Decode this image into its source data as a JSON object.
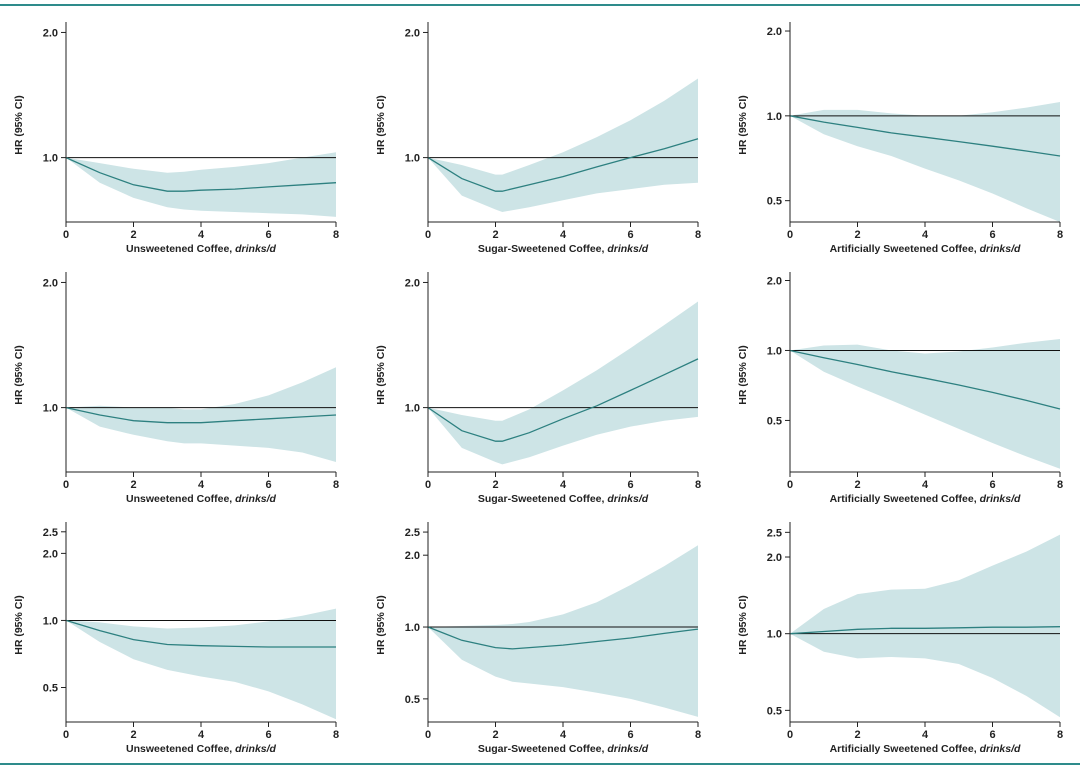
{
  "colors": {
    "band": "#cde4e6",
    "line": "#2d8080",
    "axis": "#222222",
    "ref": "#111111",
    "rule": "#2e8b8b"
  },
  "chart_data": [
    {
      "type": "line",
      "panel": "r1c1",
      "xlabel": "Unsweetened Coffee,",
      "xlabel_italic": "drinks/d",
      "ylabel": "HR (95% CI)",
      "x_ticks": [
        "0",
        "2",
        "4",
        "6",
        "8"
      ],
      "y_ticks": [
        "2.0",
        "1.0"
      ],
      "xlim": [
        0,
        8
      ],
      "ylim": [
        0.7,
        2.05
      ],
      "y_scale": "log",
      "ref_line": 1.0,
      "x": [
        0,
        1,
        2,
        3,
        3.5,
        4,
        5,
        6,
        7,
        8
      ],
      "hr": [
        1.0,
        0.92,
        0.86,
        0.83,
        0.83,
        0.835,
        0.84,
        0.85,
        0.86,
        0.87
      ],
      "lower": [
        1.0,
        0.87,
        0.8,
        0.76,
        0.75,
        0.745,
        0.74,
        0.735,
        0.73,
        0.72
      ],
      "upper": [
        1.0,
        0.97,
        0.94,
        0.92,
        0.925,
        0.935,
        0.95,
        0.97,
        1.0,
        1.03
      ]
    },
    {
      "type": "line",
      "panel": "r1c2",
      "xlabel": "Sugar-Sweetened Coffee,",
      "xlabel_italic": "drinks/d",
      "ylabel": "HR (95% CI)",
      "x_ticks": [
        "0",
        "2",
        "4",
        "6",
        "8"
      ],
      "y_ticks": [
        "2.0",
        "1.0"
      ],
      "xlim": [
        0,
        8
      ],
      "ylim": [
        0.7,
        2.05
      ],
      "y_scale": "log",
      "ref_line": 1.0,
      "x": [
        0,
        1,
        2,
        2.2,
        3,
        4,
        5,
        6,
        7,
        8
      ],
      "hr": [
        1.0,
        0.89,
        0.83,
        0.83,
        0.86,
        0.9,
        0.95,
        1.0,
        1.05,
        1.11
      ],
      "lower": [
        1.0,
        0.81,
        0.75,
        0.74,
        0.76,
        0.79,
        0.82,
        0.84,
        0.86,
        0.87
      ],
      "upper": [
        1.0,
        0.96,
        0.91,
        0.91,
        0.96,
        1.03,
        1.12,
        1.23,
        1.37,
        1.55
      ]
    },
    {
      "type": "line",
      "panel": "r1c3",
      "xlabel": "Artificially Sweetened Coffee,",
      "xlabel_italic": "drinks/d",
      "ylabel": "HR (95% CI)",
      "x_ticks": [
        "0",
        "2",
        "4",
        "6",
        "8"
      ],
      "y_ticks": [
        "2.0",
        "1.0",
        "0.5"
      ],
      "xlim": [
        0,
        8
      ],
      "ylim": [
        0.42,
        2.05
      ],
      "y_scale": "log",
      "ref_line": 1.0,
      "x": [
        0,
        1,
        2,
        3,
        4,
        5,
        6,
        7,
        8
      ],
      "hr": [
        1.0,
        0.95,
        0.91,
        0.87,
        0.84,
        0.81,
        0.78,
        0.75,
        0.72
      ],
      "lower": [
        1.0,
        0.86,
        0.78,
        0.72,
        0.65,
        0.59,
        0.53,
        0.47,
        0.42
      ],
      "upper": [
        1.0,
        1.05,
        1.05,
        1.02,
        1.0,
        1.0,
        1.03,
        1.07,
        1.12
      ]
    },
    {
      "type": "line",
      "panel": "r2c1",
      "xlabel": "Unsweetened Coffee,",
      "xlabel_italic": "drinks/d",
      "ylabel": "HR (95% CI)",
      "x_ticks": [
        "0",
        "2",
        "4",
        "6",
        "8"
      ],
      "y_ticks": [
        "2.0",
        "1.0"
      ],
      "xlim": [
        0,
        8
      ],
      "ylim": [
        0.7,
        2.05
      ],
      "y_scale": "log",
      "ref_line": 1.0,
      "x": [
        0,
        1,
        2,
        3,
        3.5,
        4,
        5,
        6,
        7,
        8
      ],
      "hr": [
        1.0,
        0.96,
        0.93,
        0.92,
        0.92,
        0.92,
        0.93,
        0.94,
        0.95,
        0.96
      ],
      "lower": [
        1.0,
        0.9,
        0.86,
        0.83,
        0.82,
        0.82,
        0.81,
        0.8,
        0.78,
        0.74
      ],
      "upper": [
        1.0,
        1.01,
        1.0,
        1.0,
        0.99,
        0.99,
        1.02,
        1.07,
        1.15,
        1.25
      ]
    },
    {
      "type": "line",
      "panel": "r2c2",
      "xlabel": "Sugar-Sweetened Coffee,",
      "xlabel_italic": "drinks/d",
      "ylabel": "HR (95% CI)",
      "x_ticks": [
        "0",
        "2",
        "4",
        "6",
        "8"
      ],
      "y_ticks": [
        "2.0",
        "1.0"
      ],
      "xlim": [
        0,
        8
      ],
      "ylim": [
        0.7,
        2.05
      ],
      "y_scale": "log",
      "ref_line": 1.0,
      "x": [
        0,
        1,
        2,
        2.2,
        3,
        4,
        5,
        6,
        7,
        8
      ],
      "hr": [
        1.0,
        0.88,
        0.83,
        0.83,
        0.87,
        0.94,
        1.01,
        1.1,
        1.2,
        1.31
      ],
      "lower": [
        1.0,
        0.8,
        0.74,
        0.73,
        0.76,
        0.81,
        0.86,
        0.9,
        0.93,
        0.95
      ],
      "upper": [
        1.0,
        0.96,
        0.93,
        0.93,
        0.99,
        1.1,
        1.23,
        1.39,
        1.58,
        1.8
      ]
    },
    {
      "type": "line",
      "panel": "r2c3",
      "xlabel": "Artificially Sweetened Coffee,",
      "xlabel_italic": "drinks/d",
      "ylabel": "HR (95% CI)",
      "x_ticks": [
        "0",
        "2",
        "4",
        "6",
        "8"
      ],
      "y_ticks": [
        "2.0",
        "1.0",
        "0.5"
      ],
      "xlim": [
        0,
        8
      ],
      "ylim": [
        0.3,
        2.05
      ],
      "y_scale": "log",
      "ref_line": 1.0,
      "x": [
        0,
        1,
        2,
        3,
        4,
        5,
        6,
        7,
        8
      ],
      "hr": [
        1.0,
        0.93,
        0.87,
        0.81,
        0.76,
        0.71,
        0.66,
        0.61,
        0.56
      ],
      "lower": [
        1.0,
        0.81,
        0.7,
        0.61,
        0.53,
        0.46,
        0.4,
        0.35,
        0.31
      ],
      "upper": [
        1.0,
        1.05,
        1.06,
        1.0,
        0.97,
        0.99,
        1.03,
        1.08,
        1.12
      ]
    },
    {
      "type": "line",
      "panel": "r3c1",
      "xlabel": "Unsweetened Coffee,",
      "xlabel_italic": "drinks/d",
      "ylabel": "HR (95% CI)",
      "x_ticks": [
        "0",
        "2",
        "4",
        "6",
        "8"
      ],
      "y_ticks": [
        "2.5",
        "2.0",
        "1.0",
        "0.5"
      ],
      "xlim": [
        0,
        8
      ],
      "ylim": [
        0.35,
        2.6
      ],
      "y_scale": "log",
      "ref_line": 1.0,
      "x": [
        0,
        1,
        2,
        3,
        4,
        5,
        6,
        7,
        8
      ],
      "hr": [
        1.0,
        0.9,
        0.82,
        0.78,
        0.77,
        0.765,
        0.76,
        0.76,
        0.76
      ],
      "lower": [
        1.0,
        0.8,
        0.67,
        0.6,
        0.56,
        0.53,
        0.48,
        0.42,
        0.36
      ],
      "upper": [
        1.0,
        0.98,
        0.94,
        0.92,
        0.93,
        0.95,
        0.99,
        1.05,
        1.13
      ]
    },
    {
      "type": "line",
      "panel": "r3c2",
      "xlabel": "Sugar-Sweetened Coffee,",
      "xlabel_italic": "drinks/d",
      "ylabel": "HR (95% CI)",
      "x_ticks": [
        "0",
        "2",
        "4",
        "6",
        "8"
      ],
      "y_ticks": [
        "2.5",
        "2.0",
        "1.0",
        "0.5"
      ],
      "xlim": [
        0,
        8
      ],
      "ylim": [
        0.4,
        2.6
      ],
      "y_scale": "log",
      "ref_line": 1.0,
      "x": [
        0,
        1,
        2,
        2.5,
        3,
        4,
        5,
        6,
        7,
        8
      ],
      "hr": [
        1.0,
        0.88,
        0.82,
        0.81,
        0.82,
        0.84,
        0.87,
        0.9,
        0.94,
        0.98
      ],
      "lower": [
        1.0,
        0.73,
        0.62,
        0.59,
        0.58,
        0.56,
        0.53,
        0.5,
        0.46,
        0.42
      ],
      "upper": [
        1.0,
        1.01,
        1.02,
        1.03,
        1.05,
        1.13,
        1.27,
        1.5,
        1.8,
        2.2
      ]
    },
    {
      "type": "line",
      "panel": "r3c3",
      "xlabel": "Artificially Sweetened Coffee,",
      "xlabel_italic": "drinks/d",
      "ylabel": "HR (95% CI)",
      "x_ticks": [
        "0",
        "2",
        "4",
        "6",
        "8"
      ],
      "y_ticks": [
        "2.5",
        "2.0",
        "1.0",
        "0.5"
      ],
      "xlim": [
        0,
        8
      ],
      "ylim": [
        0.45,
        2.6
      ],
      "y_scale": "log",
      "ref_line": 1.0,
      "x": [
        0,
        1,
        2,
        3,
        4,
        5,
        6,
        7,
        8
      ],
      "hr": [
        1.0,
        1.02,
        1.04,
        1.05,
        1.05,
        1.055,
        1.06,
        1.06,
        1.065
      ],
      "lower": [
        1.0,
        0.85,
        0.8,
        0.81,
        0.8,
        0.76,
        0.67,
        0.57,
        0.47
      ],
      "upper": [
        1.0,
        1.25,
        1.43,
        1.49,
        1.5,
        1.62,
        1.85,
        2.1,
        2.45
      ]
    }
  ]
}
